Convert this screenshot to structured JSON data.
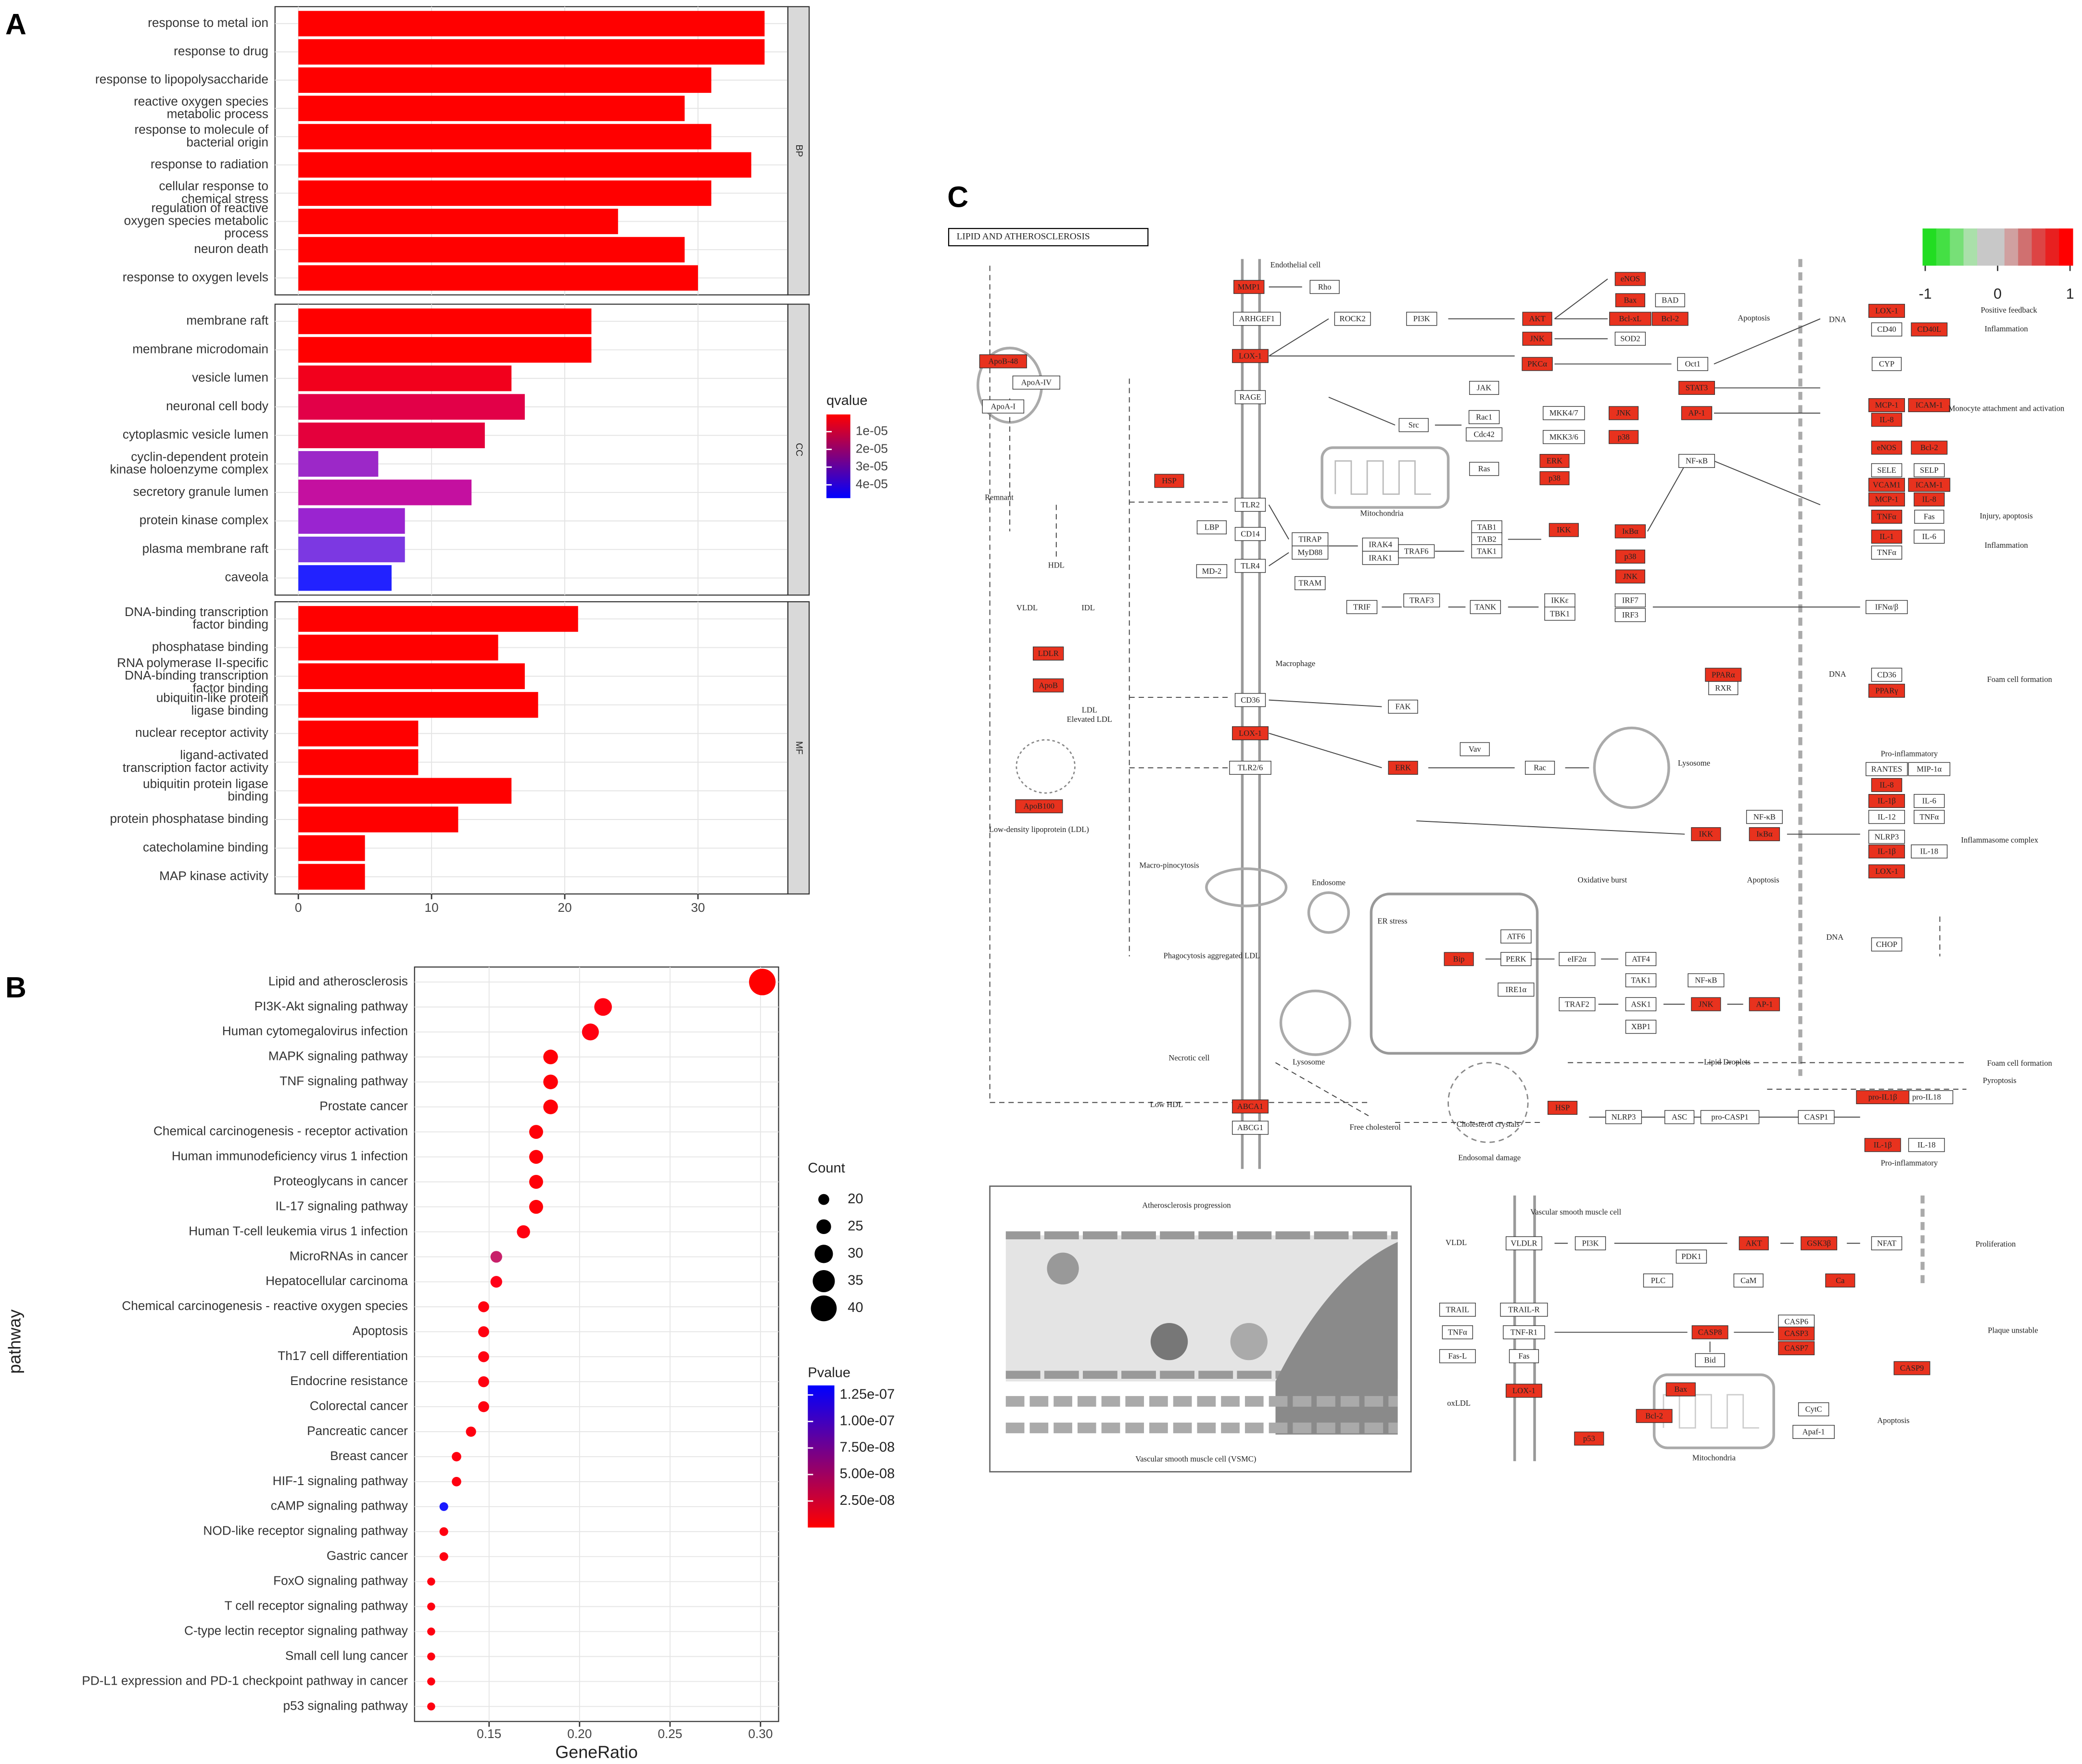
{
  "panels": [
    "A",
    "B",
    "C"
  ],
  "chart_data": [
    {
      "type": "bar",
      "orientation": "horizontal",
      "facets": [
        {
          "label": "BP",
          "categories": [
            "response to metal ion",
            "response to drug",
            "response to lipopolysaccharide",
            "reactive oxygen species\nmetabolic process",
            "response to molecule of\nbacterial origin",
            "response to radiation",
            "cellular response to\nchemical stress",
            "regulation of reactive\noxygen species metabolic\nprocess",
            "neuron death",
            "response to oxygen levels"
          ],
          "values": [
            35,
            35,
            31,
            29,
            31,
            34,
            31,
            24,
            29,
            30
          ],
          "colors": [
            "#ff0000",
            "#ff0000",
            "#ff0000",
            "#ff0000",
            "#ff0000",
            "#ff0000",
            "#ff0000",
            "#ff0000",
            "#ff0000",
            "#ff0000"
          ]
        },
        {
          "label": "CC",
          "categories": [
            "membrane raft",
            "membrane microdomain",
            "vesicle lumen",
            "neuronal cell body",
            "cytoplasmic vesicle lumen",
            "cyclin-dependent protein\nkinase holoenzyme complex",
            "secretory granule lumen",
            "protein kinase complex",
            "plasma membrane raft",
            "caveola"
          ],
          "values": [
            22,
            22,
            16,
            17,
            14,
            6,
            13,
            8,
            8,
            7
          ],
          "colors": [
            "#ff0000",
            "#ff0000",
            "#f2001c",
            "#e20048",
            "#e4003c",
            "#9c28c8",
            "#c410a0",
            "#9a24d0",
            "#7c38e2",
            "#2222ff"
          ]
        },
        {
          "label": "MF",
          "categories": [
            "DNA-binding transcription\nfactor binding",
            "phosphatase binding",
            "RNA polymerase II-specific\nDNA-binding transcription\nfactor binding",
            "ubiquitin-like protein\nligase binding",
            "nuclear receptor activity",
            "ligand-activated\ntranscription factor activity",
            "ubiquitin protein ligase\nbinding",
            "protein phosphatase binding",
            "catecholamine binding",
            "MAP kinase activity"
          ],
          "values": [
            21,
            15,
            17,
            18,
            9,
            9,
            16,
            12,
            5,
            5
          ],
          "colors": [
            "#ff0000",
            "#ff0000",
            "#ff0000",
            "#ff0000",
            "#ff0000",
            "#ff0000",
            "#ff0000",
            "#ff0000",
            "#ff0000",
            "#ff0000"
          ]
        }
      ],
      "xlim": [
        -1.75,
        36.75
      ],
      "xticks": [
        0,
        10,
        20,
        30
      ],
      "grid": true,
      "colorbar": {
        "title": "qvalue",
        "lim": [
          3e-07,
          4.75e-05
        ],
        "colors": [
          "#ff0000",
          "#0000ff"
        ],
        "ticks": [
          {
            "value": 1e-05,
            "label": "1e-05"
          },
          {
            "value": 2e-05,
            "label": "2e-05"
          },
          {
            "value": 3e-05,
            "label": "3e-05"
          },
          {
            "value": 4e-05,
            "label": "4e-05"
          }
        ]
      }
    },
    {
      "type": "scatter",
      "categories": [
        "Lipid and atherosclerosis",
        "PI3K-Akt signaling pathway",
        "Human cytomegalovirus infection",
        "MAPK signaling pathway",
        "TNF signaling pathway",
        "Prostate cancer",
        "Chemical carcinogenesis - receptor activation",
        "Human immunodeficiency virus 1 infection",
        "Proteoglycans in cancer",
        "IL-17 signaling pathway",
        "Human T-cell leukemia virus 1 infection",
        "MicroRNAs in cancer",
        "Hepatocellular carcinoma",
        "Chemical carcinogenesis - reactive oxygen species",
        "Apoptosis",
        "Th17 cell differentiation",
        "Endocrine resistance",
        "Colorectal cancer",
        "Pancreatic cancer",
        "Breast cancer",
        "HIF-1 signaling pathway",
        "cAMP signaling pathway",
        "NOD-like receptor signaling pathway",
        "Gastric cancer",
        "FoxO signaling pathway",
        "T cell receptor signaling pathway",
        "C-type lectin receptor signaling pathway",
        "Small cell lung cancer",
        "PD-L1 expression and PD-1 checkpoint pathway in cancer",
        "p53 signaling pathway"
      ],
      "values": [
        0.301,
        0.213,
        0.206,
        0.184,
        0.184,
        0.184,
        0.176,
        0.176,
        0.176,
        0.176,
        0.169,
        0.154,
        0.154,
        0.147,
        0.147,
        0.147,
        0.147,
        0.147,
        0.14,
        0.132,
        0.132,
        0.125,
        0.125,
        0.125,
        0.118,
        0.118,
        0.118,
        0.118,
        0.118,
        0.118
      ],
      "sizes": [
        41,
        29,
        28,
        25,
        25,
        25,
        24,
        24,
        24,
        24,
        23,
        21,
        21,
        20,
        20,
        20,
        20,
        20,
        19,
        18,
        18,
        17,
        17,
        17,
        16,
        16,
        16,
        16,
        16,
        16
      ],
      "colors": [
        "#ff0000",
        "#ff0010",
        "#ff0010",
        "#ff0008",
        "#ff0008",
        "#ff0008",
        "#ff0008",
        "#ff0008",
        "#ff0008",
        "#ff0008",
        "#ff0010",
        "#c8206a",
        "#ff0018",
        "#ff0010",
        "#ff0010",
        "#ff0010",
        "#ff0010",
        "#ff0010",
        "#ff0010",
        "#ff0010",
        "#ff0010",
        "#1a1aff",
        "#ff0010",
        "#ff0010",
        "#ff0010",
        "#ff0010",
        "#ff0010",
        "#ff0010",
        "#ff0010",
        "#ff0010"
      ],
      "xlim": [
        0.1088,
        0.31
      ],
      "xticks": [
        0.15,
        {
          "value": 0.2,
          "label": "0.20"
        },
        0.25,
        {
          "value": 0.3,
          "label": "0.30"
        }
      ],
      "xlabel": "GeneRatio",
      "ylabel": "pathway",
      "grid": true,
      "size_legend": {
        "title": "Count",
        "values": [
          20,
          25,
          30,
          35,
          40
        ]
      },
      "colorbar": {
        "title": "Pvalue",
        "lim": [
          0,
          1.34e-07
        ],
        "colors": [
          "#ff0000",
          "#0000ff"
        ],
        "ticks": [
          {
            "value": 1.25e-07,
            "label": "1.25e-07"
          },
          {
            "value": 1e-07,
            "label": "1.00e-07"
          },
          {
            "value": 7.5e-08,
            "label": "7.50e-08"
          },
          {
            "value": 5e-08,
            "label": "5.00e-08"
          },
          {
            "value": 2.5e-08,
            "label": "2.50e-08"
          }
        ]
      }
    }
  ],
  "pathway": {
    "title": "LIPID AND ATHEROSCLEROSIS",
    "colorbar": {
      "ticks": [
        -1,
        0,
        1
      ],
      "colors": [
        "#22dd22",
        "#44e044",
        "#77e077",
        "#aae0aa",
        "#c8c8c8",
        "#c8c8c8",
        "#d0a0a0",
        "#d07070",
        "#dd4444",
        "#e82020",
        "#ff0000"
      ]
    },
    "hit_color": "#e8321e",
    "hit_nodes": [
      "MMP1",
      "eNOS",
      "Bax",
      "Bcl-xL",
      "Bcl-2",
      "AKT",
      "JNK",
      "LOX-1",
      "PKCα",
      "STAT3",
      "HSP",
      "ERK",
      "p38",
      "JNK",
      "p38",
      "AP-1",
      "IKK",
      "IκBα",
      "p38",
      "JNK",
      "LOX-1",
      "CD40L",
      "MCP-1",
      "ICAM-1",
      "IL-8",
      "eNOS",
      "Bcl-2",
      "VCAM1",
      "ICAM-1",
      "MCP-1",
      "IL-8",
      "TNFα",
      "IL-1",
      "PPARα",
      "PPARγ",
      "LOX-1",
      "ERK",
      "IKK",
      "IκBα",
      "IL-8",
      "IL-1β",
      "IL-1β",
      "LOX-1",
      "Bip",
      "JNK",
      "AP-1",
      "ABCA1",
      "HSP",
      "pro-IL1β",
      "IL-1β",
      "ApoB-48",
      "LDLR",
      "ApoB",
      "ApoB100",
      "AKT",
      "GSK3β",
      "Ca",
      "CASP8",
      "CASP3",
      "CASP7",
      "CASP9",
      "LOX-1",
      "Bax",
      "Bcl-2",
      "p53"
    ],
    "nodes": [
      "ARHGEF1",
      "Rho",
      "ROCK2",
      "PI3K",
      "BAD",
      "SOD2",
      "Oct1",
      "RAGE",
      "JAK",
      "Src",
      "Rac1",
      "Cdc42",
      "Ras",
      "MKK4/7",
      "MKK3/6",
      "NF-κB",
      "TLR2",
      "CD14",
      "TLR4",
      "MD-2",
      "LBP",
      "TIRAP",
      "MyD88",
      "TRAM",
      "IRAK4",
      "IRAK1",
      "TRAF6",
      "TAB1",
      "TAB2",
      "TAK1",
      "TRIF",
      "TRAF3",
      "TANK",
      "IKKε",
      "TBK1",
      "IRF7",
      "IRF3",
      "IFNα/β",
      "CD40",
      "CYP",
      "SELE",
      "SELP",
      "Fas",
      "IL-6",
      "TNFα",
      "CD36",
      "RXR",
      "CD36",
      "TLR2/6",
      "FAK",
      "Vav",
      "Rac",
      "NF-κB",
      "RANTES",
      "MIP-1α",
      "IL-6",
      "IL-12",
      "TNFα",
      "NLRP3",
      "IL-18",
      "CHOP",
      "PERK",
      "eIF2α",
      "ATF4",
      "ATF6",
      "IRE1α",
      "TRAF2",
      "ASK1",
      "TAK1",
      "XBP1",
      "NF-κB",
      "ABCG1",
      "NLRP3",
      "ASC",
      "pro-CASP1",
      "CASP1",
      "pro-IL18",
      "IL-18",
      "ApoA-IV",
      "ApoA-I",
      "VLDLR",
      "PI3K",
      "PDK1",
      "NFAT",
      "CaM",
      "PLC",
      "TRAIL",
      "TRAIL-R",
      "TNFα",
      "TNF-R1",
      "Fas-L",
      "Fas",
      "Bid",
      "CASP6",
      "CytC",
      "Apaf-1"
    ],
    "notes": [
      "Endothelial cell",
      "Macrophage",
      "Mitochondria",
      "Lysosome",
      "Endosome",
      "Lysosome",
      "Apoptosis",
      "Foam cell formation",
      "Inflammation",
      "Positive feedback",
      "Monocyte attachment and activation",
      "Injury, apoptosis",
      "Inflammation",
      "Pro-inflammatory",
      "Inflammasome complex",
      "Apoptosis",
      "Oxidative burst",
      "Foam cell formation",
      "Pyroptosis",
      "Pro-inflammatory",
      "Vascular smooth muscle cell",
      "Proliferation",
      "Plaque unstable",
      "Apoptosis",
      "Mitochondria",
      "Atherosclerosis progression",
      "Vascular smooth muscle cell (VSMC)",
      "Cholesterol crystals",
      "Endosomal damage",
      "Free cholesterol",
      "Low HDL",
      "Lipid Droplets",
      "Elevated LDL",
      "Low-density lipoprotein (LDL)",
      "Macro-pinocytosis",
      "Phagocytosis aggregated LDL",
      "Necrotic cell",
      "Remnant",
      "VLDL",
      "IDL",
      "HDL",
      "LDL",
      "VLDL",
      "oxLDL",
      "ER stress",
      "DNA",
      "DNA",
      "DNA"
    ]
  }
}
